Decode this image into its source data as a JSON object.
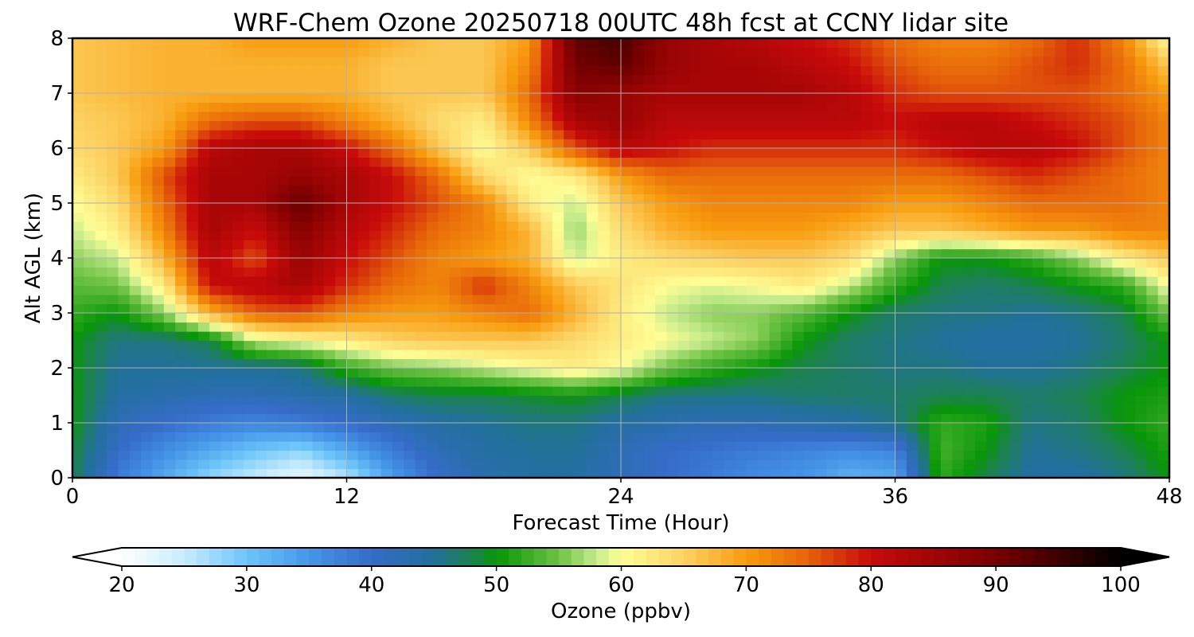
{
  "chart_data": {
    "type": "heatmap",
    "title": "WRF-Chem Ozone  20250718 00UTC 48h fcst at CCNY lidar site",
    "xlabel": "Forecast Time (Hour)",
    "ylabel": "Alt AGL (km)",
    "xlim": [
      0,
      48
    ],
    "ylim": [
      0,
      8
    ],
    "xticks": [
      "0",
      "12",
      "24",
      "36",
      "48"
    ],
    "yticks": [
      "0",
      "1",
      "2",
      "3",
      "4",
      "5",
      "6",
      "7",
      "8"
    ],
    "grid": true,
    "x_hours": [
      0,
      2,
      4,
      6,
      8,
      10,
      12,
      14,
      16,
      18,
      20,
      22,
      24,
      26,
      28,
      30,
      32,
      34,
      36,
      38,
      40,
      42,
      44,
      46,
      48
    ],
    "y_km": [
      0,
      0.5,
      1,
      1.5,
      2,
      2.5,
      3,
      3.5,
      4,
      4.5,
      5,
      5.5,
      6,
      6.5,
      7,
      7.5,
      8
    ],
    "values_ppbv": [
      [
        48,
        38,
        33,
        28,
        25,
        22,
        26,
        34,
        40,
        43,
        44,
        44,
        42,
        40,
        38,
        36,
        35,
        32,
        33,
        52,
        48,
        44,
        44,
        46,
        50
      ],
      [
        49,
        40,
        36,
        33,
        30,
        28,
        33,
        38,
        42,
        44,
        45,
        45,
        42,
        40,
        39,
        38,
        37,
        36,
        37,
        53,
        50,
        45,
        46,
        48,
        51
      ],
      [
        50,
        42,
        40,
        38,
        37,
        38,
        40,
        42,
        44,
        45,
        46,
        46,
        44,
        43,
        42,
        42,
        43,
        44,
        46,
        52,
        51,
        46,
        47,
        50,
        52
      ],
      [
        50,
        44,
        43,
        42,
        42,
        43,
        44,
        47,
        48,
        48,
        49,
        50,
        48,
        46,
        46,
        46,
        47,
        47,
        47,
        48,
        48,
        47,
        48,
        50,
        51
      ],
      [
        50,
        45,
        45,
        45,
        45,
        46,
        52,
        55,
        56,
        58,
        60,
        62,
        60,
        55,
        52,
        50,
        48,
        47,
        46,
        46,
        45,
        45,
        46,
        48,
        50
      ],
      [
        50,
        46,
        46,
        48,
        58,
        60,
        62,
        65,
        66,
        66,
        66,
        64,
        62,
        60,
        58,
        56,
        50,
        47,
        46,
        45,
        44,
        44,
        45,
        47,
        50
      ],
      [
        52,
        50,
        56,
        68,
        75,
        76,
        72,
        70,
        70,
        72,
        74,
        68,
        62,
        58,
        56,
        56,
        54,
        50,
        47,
        46,
        46,
        45,
        46,
        48,
        55
      ],
      [
        54,
        55,
        62,
        80,
        82,
        84,
        78,
        74,
        72,
        78,
        72,
        66,
        63,
        60,
        59,
        60,
        62,
        58,
        52,
        48,
        47,
        48,
        50,
        52,
        60
      ],
      [
        56,
        58,
        68,
        82,
        76,
        86,
        80,
        76,
        72,
        70,
        68,
        58,
        62,
        64,
        65,
        66,
        66,
        64,
        56,
        50,
        50,
        52,
        56,
        62,
        66
      ],
      [
        58,
        62,
        72,
        84,
        80,
        88,
        82,
        78,
        74,
        72,
        68,
        56,
        64,
        68,
        70,
        70,
        70,
        68,
        66,
        66,
        68,
        70,
        70,
        72,
        72
      ],
      [
        60,
        64,
        74,
        84,
        84,
        92,
        84,
        80,
        76,
        72,
        62,
        58,
        66,
        70,
        72,
        72,
        72,
        72,
        70,
        70,
        72,
        74,
        74,
        74,
        72
      ],
      [
        62,
        66,
        76,
        84,
        84,
        86,
        84,
        80,
        74,
        64,
        60,
        62,
        70,
        74,
        74,
        74,
        74,
        74,
        74,
        74,
        76,
        78,
        76,
        74,
        72
      ],
      [
        64,
        66,
        70,
        82,
        84,
        84,
        80,
        74,
        66,
        60,
        66,
        76,
        82,
        80,
        78,
        78,
        78,
        78,
        78,
        80,
        82,
        82,
        80,
        76,
        72
      ],
      [
        65,
        66,
        68,
        74,
        76,
        76,
        72,
        68,
        64,
        62,
        72,
        84,
        86,
        82,
        82,
        82,
        82,
        82,
        80,
        82,
        82,
        80,
        78,
        76,
        72
      ],
      [
        66,
        67,
        68,
        68,
        68,
        68,
        68,
        66,
        66,
        66,
        74,
        88,
        86,
        84,
        84,
        84,
        84,
        82,
        78,
        76,
        76,
        76,
        76,
        74,
        70
      ],
      [
        66,
        67,
        68,
        68,
        68,
        68,
        68,
        66,
        66,
        66,
        72,
        90,
        92,
        86,
        84,
        84,
        82,
        80,
        76,
        74,
        74,
        76,
        78,
        74,
        66
      ],
      [
        66,
        67,
        68,
        68,
        70,
        70,
        70,
        68,
        66,
        66,
        70,
        92,
        94,
        86,
        84,
        82,
        80,
        78,
        74,
        72,
        72,
        74,
        78,
        72,
        60
      ]
    ],
    "colorbar": {
      "label": "Ozone  (ppbv)",
      "min": 20,
      "max": 100,
      "extend": "both",
      "ticks": [
        "20",
        "30",
        "40",
        "50",
        "60",
        "70",
        "80",
        "90",
        "100"
      ],
      "colors": [
        {
          "value": 20,
          "color": "#ffffff"
        },
        {
          "value": 25,
          "color": "#c8ecfe"
        },
        {
          "value": 30,
          "color": "#6cc5f9"
        },
        {
          "value": 35,
          "color": "#4596e8"
        },
        {
          "value": 40,
          "color": "#356cc8"
        },
        {
          "value": 45,
          "color": "#21709a"
        },
        {
          "value": 48,
          "color": "#1c8150"
        },
        {
          "value": 50,
          "color": "#089608"
        },
        {
          "value": 55,
          "color": "#6ec244"
        },
        {
          "value": 58,
          "color": "#c6eb8c"
        },
        {
          "value": 60,
          "color": "#fefe96"
        },
        {
          "value": 65,
          "color": "#fcd263"
        },
        {
          "value": 70,
          "color": "#f89c0e"
        },
        {
          "value": 75,
          "color": "#e6620a"
        },
        {
          "value": 80,
          "color": "#c80a0a"
        },
        {
          "value": 90,
          "color": "#780000"
        },
        {
          "value": 100,
          "color": "#000000"
        }
      ]
    }
  }
}
